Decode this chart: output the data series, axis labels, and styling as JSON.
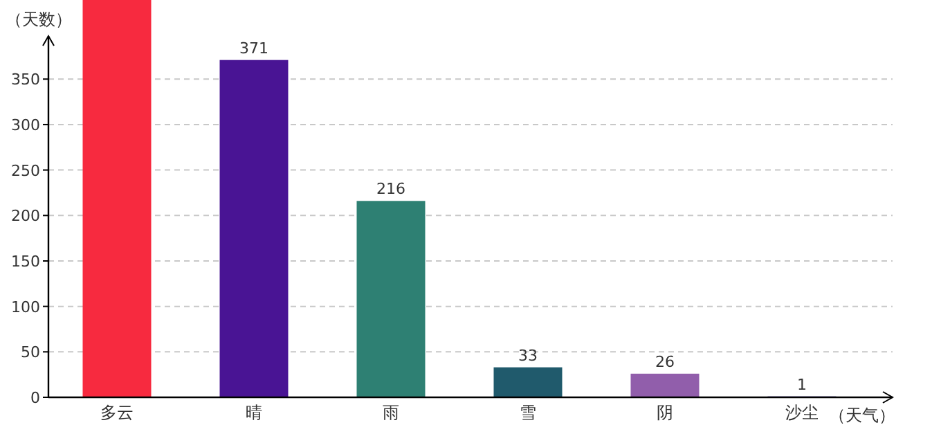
{
  "chart_data": {
    "type": "bar",
    "ylabel": "（天数）",
    "xlabel": "（天气）",
    "categories": [
      "多云",
      "晴",
      "雨",
      "雪",
      "阴",
      "沙尘"
    ],
    "values": [
      437,
      371,
      216,
      33,
      26,
      1
    ],
    "colors": [
      "#f72a3f",
      "#491494",
      "#2e8073",
      "#205a6c",
      "#915eab",
      "#4a3aa0"
    ],
    "value_labels": [
      null,
      "371",
      "216",
      "33",
      "26",
      "1"
    ],
    "ylim": [
      0,
      437
    ],
    "yticks": [
      0,
      50,
      100,
      150,
      200,
      250,
      300,
      350
    ],
    "grid": "y"
  }
}
